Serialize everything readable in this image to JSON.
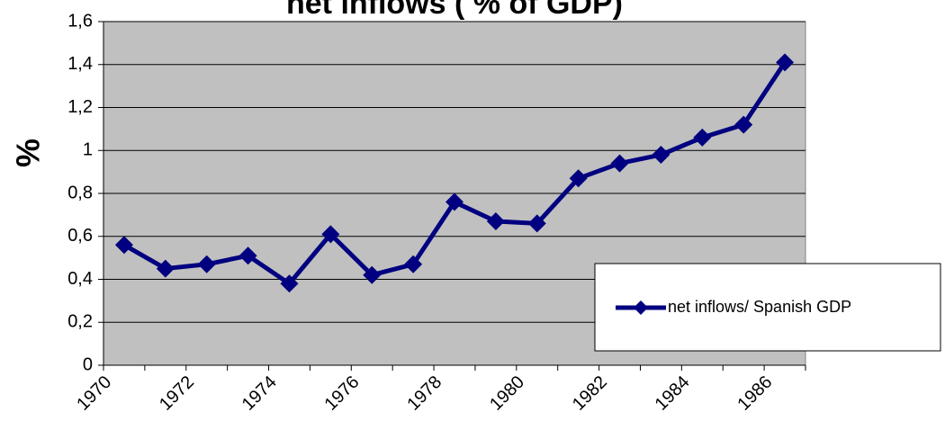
{
  "chart_data": {
    "type": "line",
    "title": "net inflows ( % of GDP)",
    "y_label": "%",
    "categories": [
      "1970",
      null,
      "1972",
      null,
      "1974",
      null,
      "1976",
      null,
      "1978",
      null,
      "1980",
      null,
      "1982",
      null,
      "1984",
      null,
      "1986"
    ],
    "series": [
      {
        "name": "net inflows/ Spanish GDP",
        "color": "#000080",
        "values": [
          0.56,
          0.45,
          0.47,
          0.51,
          0.38,
          0.61,
          0.42,
          0.47,
          0.76,
          0.67,
          0.66,
          0.87,
          0.94,
          0.98,
          1.06,
          1.12,
          1.41
        ]
      }
    ],
    "ylim": [
      0,
      1.6
    ],
    "yticks": [
      0,
      {
        "value": 0.2,
        "label": "0,2"
      },
      {
        "value": 0.4,
        "label": "0,4"
      },
      {
        "value": 0.6,
        "label": "0,6"
      },
      {
        "value": 0.8,
        "label": "0,8"
      },
      1,
      {
        "value": 1.2,
        "label": "1,2"
      },
      {
        "value": 1.4,
        "label": "1,4"
      },
      {
        "value": 1.6,
        "label": "1,6"
      }
    ],
    "grid": true,
    "legend": "right"
  }
}
